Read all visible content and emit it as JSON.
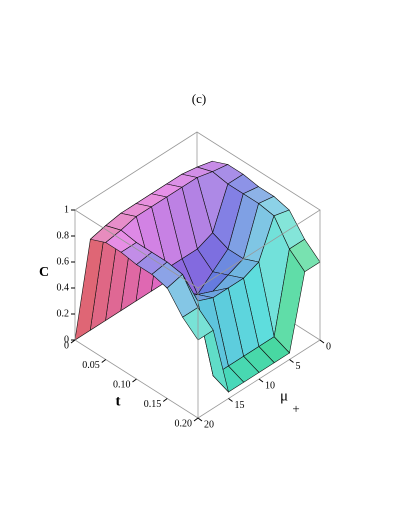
{
  "chart_data": {
    "type": "surface3d",
    "title": "(c)",
    "x_label": "t",
    "y_label": "μ",
    "y_label_sub": "+",
    "z_label": "C",
    "x": [
      0,
      0.025,
      0.05,
      0.075,
      0.1,
      0.125,
      0.15,
      0.175,
      0.2
    ],
    "y": [
      0,
      2.5,
      5,
      7.5,
      10,
      12.5,
      15,
      17.5,
      20
    ],
    "z": [
      [
        0,
        0,
        0,
        0,
        0,
        0,
        0,
        0,
        0
      ],
      [
        0.85,
        0.88,
        0.9,
        0.9,
        0.9,
        0.9,
        0.9,
        0.88,
        0.85
      ],
      [
        0.9,
        0.92,
        0.95,
        0.95,
        0.95,
        0.95,
        0.95,
        0.92,
        0.9
      ],
      [
        0.9,
        0.9,
        0.6,
        0.55,
        0.55,
        0.55,
        0.6,
        0.9,
        0.9
      ],
      [
        0.88,
        0.9,
        0.55,
        0.45,
        0.35,
        0.45,
        0.55,
        0.9,
        0.88
      ],
      [
        0.88,
        0.9,
        0.55,
        0.5,
        0.45,
        0.5,
        0.55,
        0.9,
        0.88
      ],
      [
        0.85,
        0.88,
        0.6,
        0.55,
        0.55,
        0.55,
        0.6,
        0.88,
        0.85
      ],
      [
        0.7,
        0.7,
        0.1,
        0.1,
        0.1,
        0.1,
        0.1,
        0.7,
        0.7
      ],
      [
        0.6,
        0.6,
        0.05,
        0.05,
        0.05,
        0.05,
        0.05,
        0.6,
        0.6
      ]
    ],
    "xlim": [
      0,
      0.2
    ],
    "ylim": [
      0,
      20
    ],
    "zlim": [
      0,
      1
    ],
    "xticks": [
      0,
      0.05,
      {
        "value": 0.1,
        "label": "0.10"
      },
      0.15,
      {
        "value": 0.2,
        "label": "0.20"
      }
    ],
    "yticks": [
      0,
      5,
      10,
      15,
      20
    ],
    "zticks": [
      0,
      0.2,
      0.4,
      0.6,
      0.8,
      1
    ]
  }
}
